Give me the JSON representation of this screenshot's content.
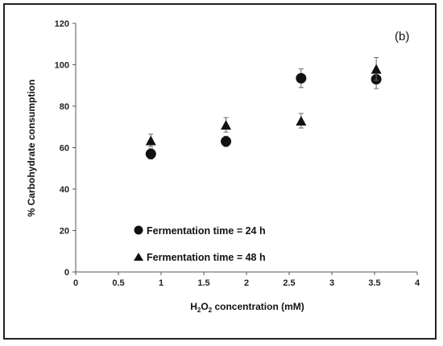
{
  "chart_data": {
    "type": "scatter",
    "panel_label": "(b)",
    "xlabel": {
      "prefix": "H",
      "sub1": "2",
      "mid": "O",
      "sub2": "2",
      "suffix": " concentration (mM)"
    },
    "ylabel": "% Carbohydrate  consumption",
    "xlim": [
      0,
      4
    ],
    "ylim": [
      0,
      120
    ],
    "xticks": [
      0,
      0.5,
      1,
      1.5,
      2,
      2.5,
      3,
      3.5,
      4
    ],
    "xtick_labels": [
      "0",
      "0.5",
      "1",
      "1.5",
      "2",
      "2.5",
      "3",
      "3.5",
      "4"
    ],
    "yticks": [
      0,
      20,
      40,
      60,
      80,
      100,
      120
    ],
    "ytick_labels": [
      "0",
      "20",
      "40",
      "60",
      "80",
      "100",
      "120"
    ],
    "grid": false,
    "legend_position": "bottom-left",
    "series": [
      {
        "name": "Fermentation time = 24 h",
        "marker": "circle",
        "color": "#111111",
        "points": [
          {
            "x": 0.88,
            "y": 57,
            "err": 2.5
          },
          {
            "x": 1.76,
            "y": 63,
            "err": 2.5
          },
          {
            "x": 2.64,
            "y": 93.5,
            "err": 4.5
          },
          {
            "x": 3.52,
            "y": 93,
            "err": 4.5
          }
        ]
      },
      {
        "name": "Fermentation time = 48 h",
        "marker": "triangle",
        "color": "#111111",
        "points": [
          {
            "x": 0.88,
            "y": 63.5,
            "err": 3
          },
          {
            "x": 1.76,
            "y": 71,
            "err": 3.5
          },
          {
            "x": 2.64,
            "y": 73,
            "err": 3.5
          },
          {
            "x": 3.52,
            "y": 98,
            "err": 5.5
          }
        ]
      }
    ]
  }
}
